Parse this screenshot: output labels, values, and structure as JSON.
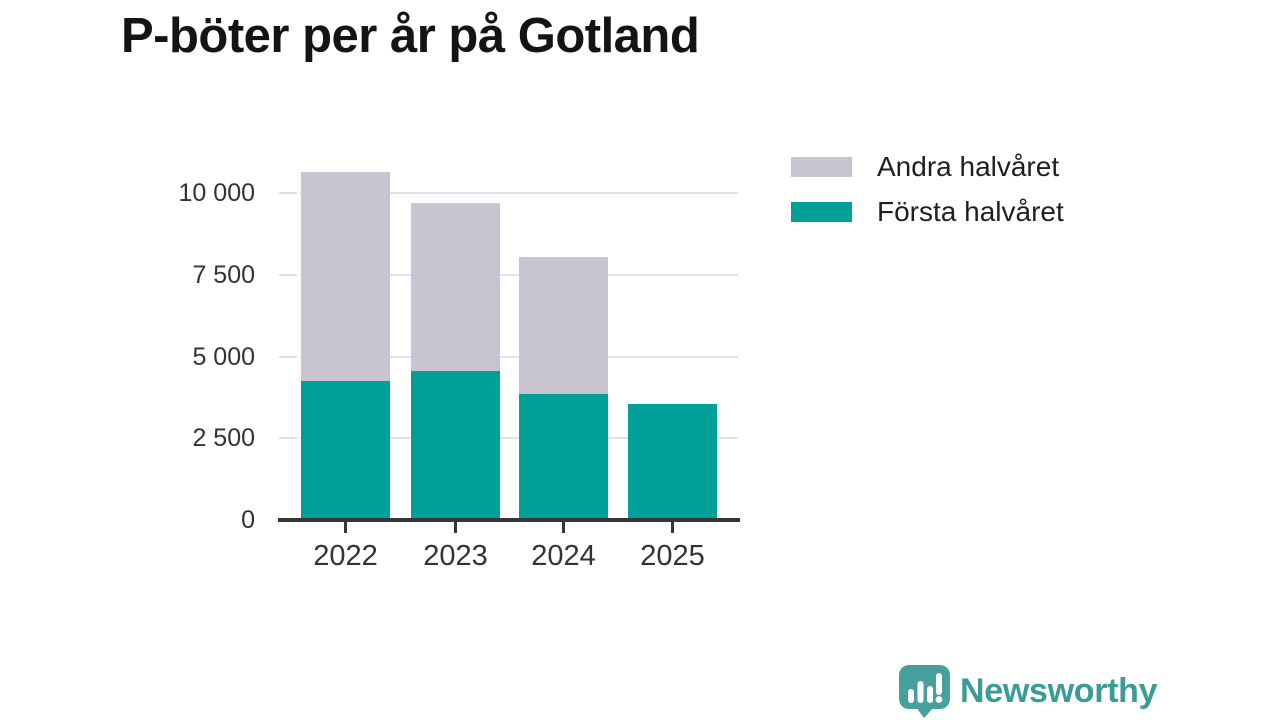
{
  "title": "P-böter per år på Gotland",
  "chart_data": {
    "type": "bar",
    "stacked": true,
    "title": "P-böter per år på Gotland",
    "categories": [
      "2022",
      "2023",
      "2024",
      "2025"
    ],
    "series": [
      {
        "name": "Första halvåret",
        "color": "#00A099",
        "values": [
          4250,
          4550,
          3850,
          3550
        ]
      },
      {
        "name": "Andra halvåret",
        "color": "#C8C5D0",
        "values": [
          6400,
          5150,
          4200,
          0
        ]
      }
    ],
    "totals": [
      10650,
      9700,
      8050,
      3550
    ],
    "xlabel": "",
    "ylabel": "",
    "ylim": [
      0,
      10700
    ],
    "yticks": [
      0,
      2500,
      5000,
      7500,
      10000
    ],
    "ytick_labels": [
      "0",
      "2 500",
      "5 000",
      "7 500",
      "10 000"
    ],
    "grid": "horizontal",
    "legend_position": "top-right",
    "legend_order": "reverse-series"
  },
  "branding": {
    "name": "Newsworthy",
    "icon": "speech-bubble-bar-chart-icon",
    "icon_color": "#47A09C",
    "text_color": "#3B9B97"
  },
  "colors": {
    "background": "#FFFFFF",
    "axis": "#363636",
    "grid": "#E3E3E6",
    "tick_label": "#333333",
    "title_text": "#141414"
  }
}
